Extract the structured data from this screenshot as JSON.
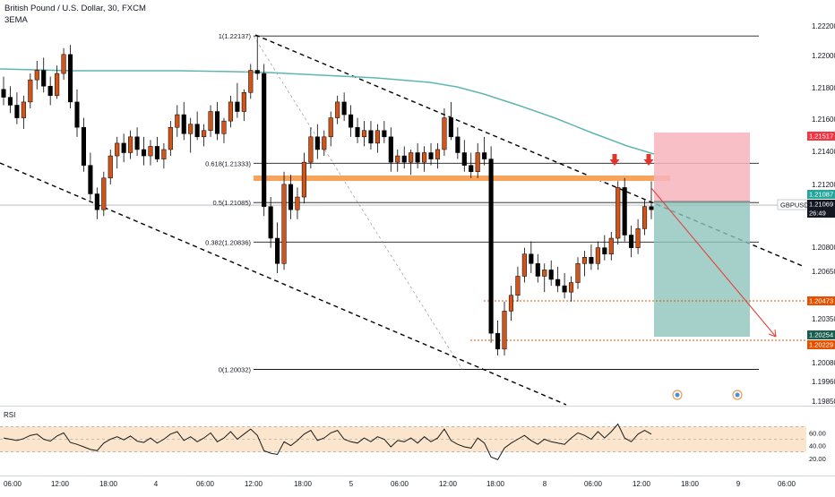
{
  "header": {
    "title": "British Pound / U.S. Dollar, 30, FXCM",
    "indicator": "3EMA"
  },
  "chart_data": {
    "type": "candlestick",
    "symbol": "GBPUSD",
    "price_axis": {
      "ticks": [
        "1.22200",
        "1.22000",
        "1.21800",
        "1.21600",
        "1.21400",
        "1.21200",
        "1.20800",
        "1.20650",
        "1.20350",
        "1.20080",
        "1.19960",
        "1.19850"
      ],
      "range": [
        1.1978,
        1.224
      ]
    },
    "time_axis": {
      "labels": [
        "06:00",
        "12:00",
        "18:00",
        "4",
        "06:00",
        "12:00",
        "18:00",
        "5",
        "06:00",
        "12:00",
        "18:00",
        "8",
        "06:00",
        "12:00",
        "18:00",
        "9",
        "06:00"
      ]
    },
    "price_labels": [
      {
        "text": "1.21517",
        "color": "#f23645",
        "value": 1.21517
      },
      {
        "text": "1.21087",
        "color": "#26a69a",
        "value": 1.21087
      },
      {
        "text": "GBPUSD",
        "color": "#131722",
        "value": 1.21069
      },
      {
        "text": "1.21069",
        "color": "#131722",
        "value": 1.21069
      },
      {
        "text": "26:49",
        "color": "#131722",
        "value": 1.21069
      },
      {
        "text": "1.20473",
        "color": "#e65100",
        "value": 1.20473
      },
      {
        "text": "1.20254",
        "color": "#1b5e50",
        "value": 1.20254
      },
      {
        "text": "1.20229",
        "color": "#e65100",
        "value": 1.20229
      }
    ],
    "fib_levels": [
      {
        "text": "1(1.22137)",
        "value": 1.22137
      },
      {
        "text": "0.618(1.21333)",
        "value": 1.21333
      },
      {
        "text": "0.5(1.21085)",
        "value": 1.21085
      },
      {
        "text": "0.382(1.20836)",
        "value": 1.20836
      },
      {
        "text": "0(1.20032)",
        "value": 1.20032
      }
    ],
    "ema_color": "#5fb7b0",
    "candle_colors": {
      "up": "#d1541a",
      "down": "#000000"
    },
    "candles": [
      [
        1.218,
        1.2188,
        1.217,
        1.2175
      ],
      [
        1.2175,
        1.2182,
        1.2165,
        1.217
      ],
      [
        1.217,
        1.2178,
        1.2158,
        1.2162
      ],
      [
        1.2162,
        1.2176,
        1.2155,
        1.2172
      ],
      [
        1.2172,
        1.219,
        1.2168,
        1.2186
      ],
      [
        1.2186,
        1.2198,
        1.218,
        1.2192
      ],
      [
        1.2192,
        1.22,
        1.2178,
        1.2182
      ],
      [
        1.2182,
        1.2188,
        1.217,
        1.2176
      ],
      [
        1.2176,
        1.2195,
        1.2174,
        1.219
      ],
      [
        1.219,
        1.2206,
        1.2186,
        1.2202
      ],
      [
        1.2202,
        1.2208,
        1.2168,
        1.2172
      ],
      [
        1.2172,
        1.218,
        1.215,
        1.2156
      ],
      [
        1.2156,
        1.2162,
        1.2128,
        1.2132
      ],
      [
        1.2132,
        1.214,
        1.211,
        1.2114
      ],
      [
        1.2114,
        1.2118,
        1.2098,
        1.2104
      ],
      [
        1.2104,
        1.2128,
        1.21,
        1.2124
      ],
      [
        1.2124,
        1.2142,
        1.212,
        1.2138
      ],
      [
        1.2138,
        1.215,
        1.213,
        1.2146
      ],
      [
        1.2146,
        1.2152,
        1.2134,
        1.214
      ],
      [
        1.214,
        1.2154,
        1.2136,
        1.215
      ],
      [
        1.215,
        1.2156,
        1.2138,
        1.2142
      ],
      [
        1.2142,
        1.215,
        1.2132,
        1.2138
      ],
      [
        1.2138,
        1.2148,
        1.2132,
        1.2144
      ],
      [
        1.2144,
        1.215,
        1.2134,
        1.2136
      ],
      [
        1.2136,
        1.2146,
        1.213,
        1.2142
      ],
      [
        1.2142,
        1.216,
        1.2138,
        1.2156
      ],
      [
        1.2156,
        1.217,
        1.215,
        1.2164
      ],
      [
        1.2164,
        1.2172,
        1.2148,
        1.2152
      ],
      [
        1.2152,
        1.2162,
        1.214,
        1.2158
      ],
      [
        1.2158,
        1.2166,
        1.2148,
        1.215
      ],
      [
        1.215,
        1.2158,
        1.2144,
        1.2154
      ],
      [
        1.2154,
        1.217,
        1.215,
        1.2166
      ],
      [
        1.2166,
        1.2172,
        1.2148,
        1.2152
      ],
      [
        1.2152,
        1.2162,
        1.2146,
        1.216
      ],
      [
        1.216,
        1.2176,
        1.2156,
        1.2172
      ],
      [
        1.2172,
        1.2184,
        1.2162,
        1.2166
      ],
      [
        1.2166,
        1.218,
        1.216,
        1.2178
      ],
      [
        1.2178,
        1.2196,
        1.2174,
        1.2192
      ],
      [
        1.2192,
        1.2214,
        1.2186,
        1.219
      ],
      [
        1.219,
        1.2196,
        1.21,
        1.2106
      ],
      [
        1.2106,
        1.2112,
        1.208,
        1.2086
      ],
      [
        1.2086,
        1.2096,
        1.2064,
        1.207
      ],
      [
        1.207,
        1.2128,
        1.2066,
        1.212
      ],
      [
        1.212,
        1.2126,
        1.2098,
        1.2104
      ],
      [
        1.2104,
        1.2118,
        1.2098,
        1.2112
      ],
      [
        1.2112,
        1.214,
        1.2108,
        1.2134
      ],
      [
        1.2134,
        1.2156,
        1.213,
        1.215
      ],
      [
        1.215,
        1.2158,
        1.2136,
        1.2142
      ],
      [
        1.2142,
        1.2154,
        1.2138,
        1.215
      ],
      [
        1.215,
        1.2166,
        1.2144,
        1.2162
      ],
      [
        1.2162,
        1.2176,
        1.2158,
        1.2172
      ],
      [
        1.2172,
        1.2178,
        1.216,
        1.2164
      ],
      [
        1.2164,
        1.217,
        1.215,
        1.2156
      ],
      [
        1.2156,
        1.2162,
        1.2146,
        1.215
      ],
      [
        1.215,
        1.216,
        1.2144,
        1.2154
      ],
      [
        1.2154,
        1.216,
        1.2142,
        1.2146
      ],
      [
        1.2146,
        1.2158,
        1.214,
        1.2154
      ],
      [
        1.2154,
        1.216,
        1.2146,
        1.215
      ],
      [
        1.215,
        1.2156,
        1.2128,
        1.2134
      ],
      [
        1.2134,
        1.2142,
        1.2128,
        1.2138
      ],
      [
        1.2138,
        1.2144,
        1.213,
        1.2134
      ],
      [
        1.2134,
        1.2142,
        1.2126,
        1.214
      ],
      [
        1.214,
        1.2146,
        1.213,
        1.2134
      ],
      [
        1.2134,
        1.2144,
        1.2128,
        1.214
      ],
      [
        1.214,
        1.2146,
        1.2132,
        1.2136
      ],
      [
        1.2136,
        1.2146,
        1.213,
        1.2142
      ],
      [
        1.2142,
        1.2168,
        1.2138,
        1.2162
      ],
      [
        1.2162,
        1.2172,
        1.2148,
        1.215
      ],
      [
        1.215,
        1.2156,
        1.2136,
        1.214
      ],
      [
        1.214,
        1.2148,
        1.2128,
        1.2132
      ],
      [
        1.2132,
        1.214,
        1.2124,
        1.2128
      ],
      [
        1.2128,
        1.2146,
        1.2124,
        1.214
      ],
      [
        1.214,
        1.215,
        1.2132,
        1.2136
      ],
      [
        1.2136,
        1.2144,
        1.202,
        1.2026
      ],
      [
        1.2026,
        1.2034,
        1.2012,
        1.2016
      ],
      [
        1.2016,
        1.2046,
        1.2012,
        1.204
      ],
      [
        1.204,
        1.2056,
        1.2034,
        1.205
      ],
      [
        1.205,
        1.2068,
        1.2046,
        1.2062
      ],
      [
        1.2062,
        1.208,
        1.2058,
        1.2076
      ],
      [
        1.2076,
        1.2084,
        1.2064,
        1.207
      ],
      [
        1.207,
        1.2076,
        1.2058,
        1.2062
      ],
      [
        1.2062,
        1.207,
        1.2052,
        1.2066
      ],
      [
        1.2066,
        1.2072,
        1.2056,
        1.206
      ],
      [
        1.206,
        1.2068,
        1.2052,
        1.2056
      ],
      [
        1.2056,
        1.2064,
        1.2048,
        1.2052
      ],
      [
        1.2052,
        1.2062,
        1.2046,
        1.2058
      ],
      [
        1.2058,
        1.2074,
        1.2054,
        1.207
      ],
      [
        1.207,
        1.2078,
        1.2062,
        1.2074
      ],
      [
        1.2074,
        1.2082,
        1.2066,
        1.207
      ],
      [
        1.207,
        1.2084,
        1.2066,
        1.208
      ],
      [
        1.208,
        1.2088,
        1.2072,
        1.2076
      ],
      [
        1.2076,
        1.209,
        1.2072,
        1.2086
      ],
      [
        1.2086,
        1.2122,
        1.2082,
        1.2118
      ],
      [
        1.2118,
        1.2124,
        1.2084,
        1.2088
      ],
      [
        1.2088,
        1.2094,
        1.2074,
        1.208
      ],
      [
        1.208,
        1.2098,
        1.2076,
        1.2092
      ],
      [
        1.2092,
        1.211,
        1.2088,
        1.2106
      ],
      [
        1.2106,
        1.2122,
        1.2098,
        1.2104
      ]
    ],
    "rsi": {
      "label": "RSI",
      "ticks": [
        "60.00",
        "40.00",
        "20.00"
      ],
      "upper": 70,
      "lower": 30,
      "band_color": "#fbe6cd",
      "values": [
        52,
        50,
        48,
        51,
        56,
        58,
        50,
        47,
        55,
        60,
        45,
        42,
        38,
        34,
        32,
        44,
        50,
        54,
        49,
        55,
        47,
        45,
        52,
        44,
        50,
        58,
        62,
        48,
        54,
        46,
        52,
        60,
        46,
        52,
        62,
        50,
        58,
        66,
        56,
        32,
        28,
        26,
        46,
        40,
        48,
        58,
        64,
        48,
        52,
        60,
        64,
        50,
        46,
        44,
        52,
        46,
        54,
        50,
        38,
        48,
        46,
        52,
        44,
        54,
        46,
        52,
        66,
        48,
        42,
        38,
        36,
        52,
        44,
        22,
        18,
        36,
        44,
        50,
        56,
        48,
        42,
        50,
        46,
        44,
        42,
        52,
        60,
        56,
        50,
        62,
        52,
        62,
        74,
        52,
        46,
        58,
        64,
        58
      ]
    }
  }
}
